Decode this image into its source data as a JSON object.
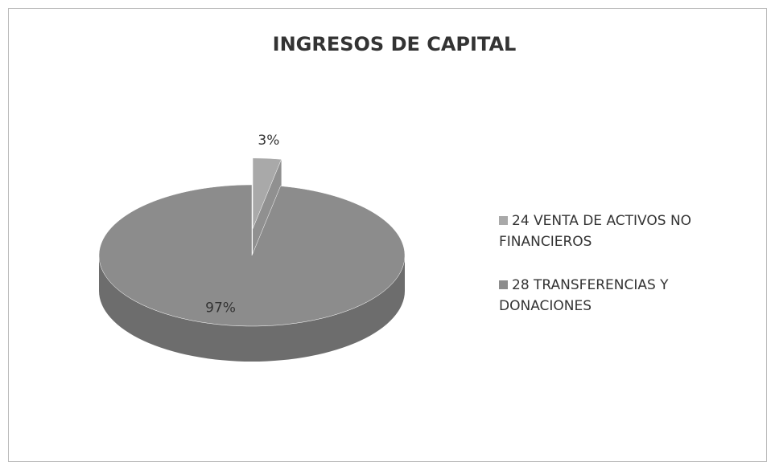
{
  "chart_data": {
    "type": "pie",
    "title": "INGRESOS DE CAPITAL",
    "categories": [
      "24 VENTA DE ACTIVOS NO FINANCIEROS",
      "28 TRANSFERENCIAS Y DONACIONES"
    ],
    "values": [
      3,
      97
    ],
    "value_labels": [
      "3%",
      "97%"
    ],
    "colors": [
      "#a9a9a9",
      "#8c8c8c"
    ],
    "legend": "right"
  }
}
